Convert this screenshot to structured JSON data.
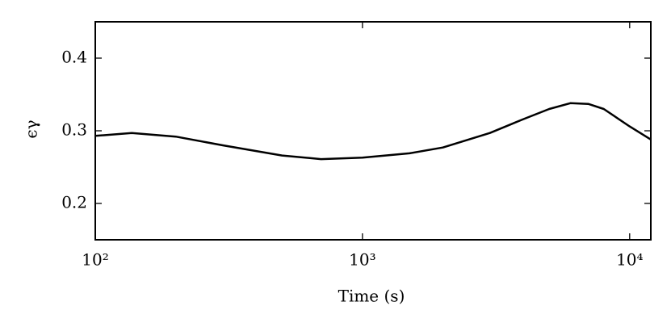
{
  "chart_data": {
    "type": "line",
    "xlabel": "Time (s)",
    "ylabel": "ϵγ",
    "xscale": "log",
    "x": [
      100,
      137,
      200,
      300,
      500,
      700,
      1000,
      1500,
      2000,
      3000,
      4000,
      5000,
      6000,
      7000,
      8000,
      10000,
      12000
    ],
    "series": [
      {
        "color": "#000000",
        "values": [
          0.293,
          0.297,
          0.292,
          0.28,
          0.266,
          0.261,
          0.263,
          0.269,
          0.277,
          0.297,
          0.316,
          0.33,
          0.338,
          0.337,
          0.33,
          0.306,
          0.288
        ]
      }
    ],
    "xlim": [
      100,
      12000
    ],
    "xticks": [
      {
        "value": 100,
        "label": "10²"
      },
      {
        "value": 1000,
        "label": "10³"
      },
      {
        "value": 10000,
        "label": "10⁴"
      }
    ],
    "ylim": [
      0.15,
      0.45
    ],
    "yticks": [
      0.2,
      0.3,
      0.4
    ]
  }
}
